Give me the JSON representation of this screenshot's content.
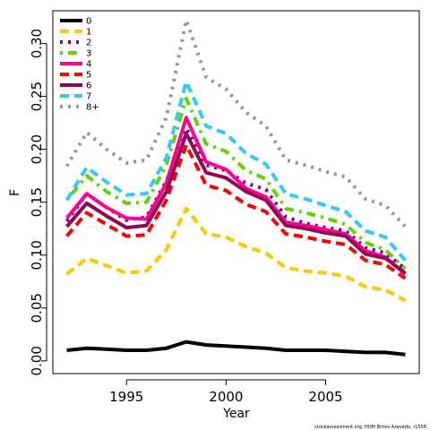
{
  "chart_data": {
    "type": "line",
    "xlabel": "Year",
    "ylabel": "F",
    "credit": "stockassessment.org, HOM Brites Azevedo, r1556",
    "xlim": [
      1991.3,
      2009.7
    ],
    "ylim": [
      -0.012,
      0.331
    ],
    "x_ticks": [
      1995,
      2000,
      2005
    ],
    "y_ticks": [
      0.0,
      0.05,
      0.1,
      0.15,
      0.2,
      0.25,
      0.3
    ],
    "y_tick_labels": [
      "0.00",
      "0.05",
      "0.10",
      "0.15",
      "0.20",
      "0.25",
      "0.30"
    ],
    "legend_position": "top-left",
    "grid": false,
    "x": [
      1992,
      1993,
      1994,
      1995,
      1996,
      1997,
      1998,
      1999,
      2000,
      2001,
      2002,
      2003,
      2004,
      2005,
      2006,
      2007,
      2008,
      2009
    ],
    "series": [
      {
        "name": "0",
        "color": "#000000",
        "dash": "solid",
        "values": [
          0.01,
          0.012,
          0.011,
          0.01,
          0.01,
          0.012,
          0.018,
          0.015,
          0.014,
          0.013,
          0.012,
          0.01,
          0.01,
          0.01,
          0.009,
          0.008,
          0.008,
          0.006
        ]
      },
      {
        "name": "1",
        "color": "#FFC800",
        "dash": "dashed",
        "values": [
          0.082,
          0.097,
          0.09,
          0.083,
          0.085,
          0.105,
          0.144,
          0.12,
          0.117,
          0.108,
          0.102,
          0.088,
          0.085,
          0.083,
          0.08,
          0.07,
          0.067,
          0.057
        ]
      },
      {
        "name": "2",
        "color": "#7800A0",
        "dash": "dotted",
        "values": [
          0.132,
          0.158,
          0.145,
          0.133,
          0.136,
          0.17,
          0.22,
          0.185,
          0.18,
          0.168,
          0.162,
          0.136,
          0.13,
          0.126,
          0.123,
          0.107,
          0.102,
          0.087
        ]
      },
      {
        "name": "3",
        "color": "#64D200",
        "dash": "dotdash",
        "values": [
          0.152,
          0.175,
          0.16,
          0.149,
          0.15,
          0.185,
          0.248,
          0.205,
          0.198,
          0.18,
          0.172,
          0.144,
          0.14,
          0.135,
          0.129,
          0.112,
          0.105,
          0.087
        ]
      },
      {
        "name": "4",
        "color": "#FF0096",
        "dash": "solid",
        "values": [
          0.135,
          0.158,
          0.145,
          0.135,
          0.134,
          0.168,
          0.23,
          0.188,
          0.181,
          0.163,
          0.155,
          0.131,
          0.128,
          0.124,
          0.12,
          0.104,
          0.098,
          0.082
        ]
      },
      {
        "name": "5",
        "color": "#FF0000",
        "dash": "dashed",
        "values": [
          0.118,
          0.14,
          0.129,
          0.118,
          0.119,
          0.152,
          0.204,
          0.166,
          0.161,
          0.148,
          0.141,
          0.12,
          0.117,
          0.113,
          0.11,
          0.095,
          0.091,
          0.078
        ]
      },
      {
        "name": "6",
        "color": "#960050",
        "dash": "solid",
        "values": [
          0.127,
          0.149,
          0.137,
          0.126,
          0.128,
          0.16,
          0.215,
          0.178,
          0.173,
          0.16,
          0.152,
          0.128,
          0.125,
          0.121,
          0.118,
          0.101,
          0.097,
          0.083
        ]
      },
      {
        "name": "7",
        "color": "#32C8FF",
        "dash": "dashed",
        "values": [
          0.152,
          0.183,
          0.169,
          0.157,
          0.158,
          0.192,
          0.264,
          0.222,
          0.215,
          0.196,
          0.186,
          0.158,
          0.153,
          0.147,
          0.141,
          0.123,
          0.117,
          0.095
        ]
      },
      {
        "name": "8+",
        "color": "#969696",
        "dash": "dotted",
        "values": [
          0.184,
          0.216,
          0.2,
          0.187,
          0.19,
          0.23,
          0.322,
          0.268,
          0.257,
          0.235,
          0.222,
          0.19,
          0.185,
          0.179,
          0.174,
          0.153,
          0.147,
          0.127
        ]
      }
    ]
  }
}
